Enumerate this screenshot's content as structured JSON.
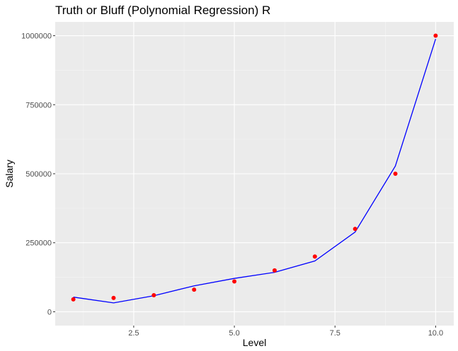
{
  "chart_data": {
    "type": "scatter",
    "title": "Truth or Bluff (Polynomial Regression) R",
    "xlabel": "Level",
    "ylabel": "Salary",
    "xlim": [
      0.55,
      10.45
    ],
    "ylim": [
      -50000,
      1050000
    ],
    "x_ticks": [
      2.5,
      5.0,
      7.5,
      10.0
    ],
    "x_tick_labels": [
      "2.5",
      "5.0",
      "7.5",
      "10.0"
    ],
    "y_ticks": [
      0,
      250000,
      500000,
      750000,
      1000000
    ],
    "y_tick_labels": [
      "0",
      "250000",
      "500000",
      "750000",
      "1000000"
    ],
    "grid": true,
    "series": [
      {
        "kind": "points",
        "color": "#ff0000",
        "x": [
          1,
          2,
          3,
          4,
          5,
          6,
          7,
          8,
          9,
          10
        ],
        "y": [
          45000,
          50000,
          60000,
          80000,
          110000,
          150000,
          200000,
          300000,
          500000,
          1000000
        ]
      },
      {
        "kind": "line",
        "color": "#0000ff",
        "x": [
          1,
          2,
          3,
          4,
          5,
          6,
          7,
          8,
          9,
          10
        ],
        "y": [
          53000,
          32000,
          58000,
          94000,
          121000,
          143000,
          184000,
          289000,
          528000,
          988000
        ]
      }
    ]
  }
}
